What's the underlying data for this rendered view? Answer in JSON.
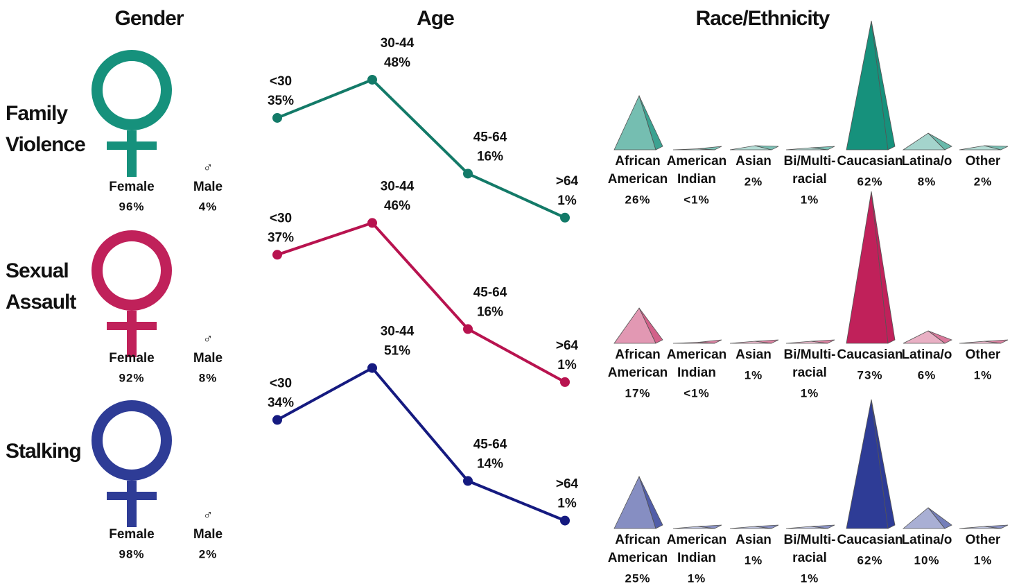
{
  "headers": [
    "Gender",
    "Age",
    "Race/Ethnicity"
  ],
  "chart_data": [
    {
      "label": [
        "Family",
        "Violence"
      ],
      "color": "#16917c",
      "line_color": "#137a68",
      "gender": {
        "type": "gender",
        "categories": [
          "Female",
          "Male"
        ],
        "values": [
          96,
          4
        ],
        "value_labels": [
          "96%",
          "4%"
        ]
      },
      "age": {
        "type": "line",
        "categories": [
          "<30",
          "30-44",
          "45-64",
          ">64"
        ],
        "values": [
          35,
          48,
          16,
          1
        ],
        "value_labels": [
          "35%",
          "48%",
          "16%",
          "1%"
        ]
      },
      "race": {
        "type": "pyramid",
        "categories": [
          [
            "African",
            "American"
          ],
          [
            "American",
            "Indian"
          ],
          [
            "Asian"
          ],
          [
            "Bi/Multi-",
            "racial"
          ],
          [
            "Caucasian"
          ],
          [
            "Latina/o"
          ],
          [
            "Other"
          ]
        ],
        "values": [
          26,
          0.5,
          2,
          1,
          62,
          8,
          2
        ],
        "value_labels": [
          "26%",
          "<1%",
          "2%",
          "1%",
          "62%",
          "8%",
          "2%"
        ]
      }
    },
    {
      "label": [
        "Sexual",
        "Assault"
      ],
      "color": "#c0215a",
      "line_color": "#b8134f",
      "gender": {
        "type": "gender",
        "categories": [
          "Female",
          "Male"
        ],
        "values": [
          92,
          8
        ],
        "value_labels": [
          "92%",
          "8%"
        ]
      },
      "age": {
        "type": "line",
        "categories": [
          "<30",
          "30-44",
          "45-64",
          ">64"
        ],
        "values": [
          37,
          46,
          16,
          1
        ],
        "value_labels": [
          "37%",
          "46%",
          "16%",
          "1%"
        ]
      },
      "race": {
        "type": "pyramid",
        "categories": [
          [
            "African",
            "American"
          ],
          [
            "American",
            "Indian"
          ],
          [
            "Asian"
          ],
          [
            "Bi/Multi-",
            "racial"
          ],
          [
            "Caucasian"
          ],
          [
            "Latina/o"
          ],
          [
            "Other"
          ]
        ],
        "values": [
          17,
          0.5,
          1,
          1,
          73,
          6,
          1
        ],
        "value_labels": [
          "17%",
          "<1%",
          "1%",
          "1%",
          "73%",
          "6%",
          "1%"
        ]
      }
    },
    {
      "label": [
        "Stalking"
      ],
      "color": "#2e3c96",
      "line_color": "#151a80",
      "gender": {
        "type": "gender",
        "categories": [
          "Female",
          "Male"
        ],
        "values": [
          98,
          2
        ],
        "value_labels": [
          "98%",
          "2%"
        ]
      },
      "age": {
        "type": "line",
        "categories": [
          "<30",
          "30-44",
          "45-64",
          ">64"
        ],
        "values": [
          34,
          51,
          14,
          1
        ],
        "value_labels": [
          "34%",
          "51%",
          "14%",
          "1%"
        ]
      },
      "race": {
        "type": "pyramid",
        "categories": [
          [
            "African",
            "American"
          ],
          [
            "American",
            "Indian"
          ],
          [
            "Asian"
          ],
          [
            "Bi/Multi-",
            "racial"
          ],
          [
            "Caucasian"
          ],
          [
            "Latina/o"
          ],
          [
            "Other"
          ]
        ],
        "values": [
          25,
          1,
          1,
          1,
          62,
          10,
          1
        ],
        "value_labels": [
          "25%",
          "1%",
          "1%",
          "1%",
          "62%",
          "10%",
          "1%"
        ]
      }
    }
  ]
}
